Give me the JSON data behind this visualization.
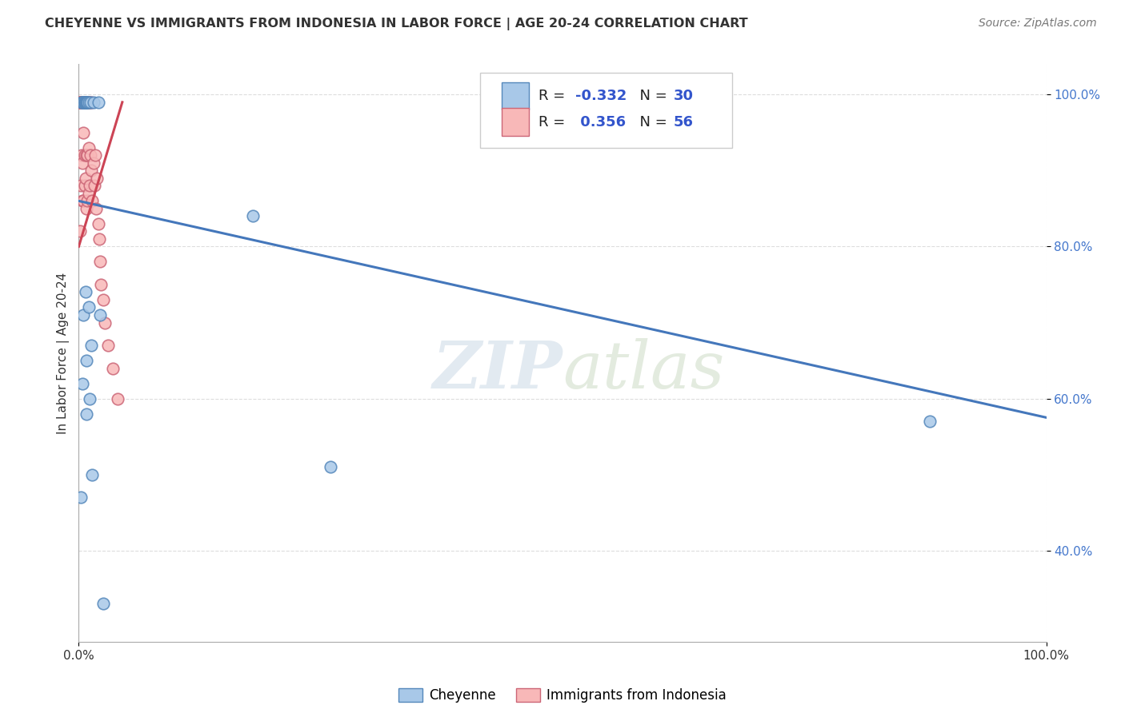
{
  "title": "CHEYENNE VS IMMIGRANTS FROM INDONESIA IN LABOR FORCE | AGE 20-24 CORRELATION CHART",
  "source": "Source: ZipAtlas.com",
  "ylabel": "In Labor Force | Age 20-24",
  "watermark": "ZIPatlas",
  "legend_blue_r": "-0.332",
  "legend_blue_n": "30",
  "legend_pink_r": "0.356",
  "legend_pink_n": "56",
  "xlim": [
    0,
    1.0
  ],
  "ylim": [
    0.28,
    1.04
  ],
  "yticks": [
    0.4,
    0.6,
    0.8,
    1.0
  ],
  "ytick_labels": [
    "40.0%",
    "60.0%",
    "80.0%",
    "100.0%"
  ],
  "blue_scatter_color": "#a8c8e8",
  "blue_edge_color": "#5588bb",
  "pink_scatter_color": "#f8b8b8",
  "pink_edge_color": "#cc6677",
  "blue_line_color": "#4477bb",
  "pink_line_color": "#cc4455",
  "cheyenne_x": [
    0.002,
    0.003,
    0.003,
    0.004,
    0.004,
    0.005,
    0.005,
    0.006,
    0.006,
    0.007,
    0.007,
    0.007,
    0.008,
    0.008,
    0.008,
    0.009,
    0.009,
    0.01,
    0.01,
    0.011,
    0.012,
    0.013,
    0.014,
    0.015,
    0.02,
    0.022,
    0.025,
    0.18,
    0.26,
    0.88
  ],
  "cheyenne_y": [
    0.47,
    0.99,
    0.99,
    0.62,
    0.99,
    0.71,
    0.99,
    0.99,
    0.99,
    0.99,
    0.74,
    0.99,
    0.99,
    0.58,
    0.65,
    0.99,
    0.99,
    0.99,
    0.72,
    0.6,
    0.99,
    0.67,
    0.5,
    0.99,
    0.99,
    0.71,
    0.33,
    0.84,
    0.51,
    0.57
  ],
  "indonesia_x": [
    0.001,
    0.001,
    0.001,
    0.002,
    0.002,
    0.002,
    0.002,
    0.003,
    0.003,
    0.003,
    0.003,
    0.003,
    0.004,
    0.004,
    0.004,
    0.004,
    0.005,
    0.005,
    0.005,
    0.005,
    0.006,
    0.006,
    0.006,
    0.006,
    0.007,
    0.007,
    0.007,
    0.008,
    0.008,
    0.008,
    0.009,
    0.009,
    0.009,
    0.01,
    0.01,
    0.01,
    0.011,
    0.011,
    0.012,
    0.013,
    0.013,
    0.014,
    0.015,
    0.016,
    0.017,
    0.018,
    0.019,
    0.02,
    0.021,
    0.022,
    0.023,
    0.025,
    0.027,
    0.03,
    0.035,
    0.04
  ],
  "indonesia_y": [
    0.99,
    0.99,
    0.82,
    0.99,
    0.99,
    0.99,
    0.88,
    0.99,
    0.99,
    0.99,
    0.92,
    0.99,
    0.99,
    0.99,
    0.91,
    0.86,
    0.99,
    0.99,
    0.95,
    0.86,
    0.99,
    0.99,
    0.92,
    0.88,
    0.99,
    0.99,
    0.89,
    0.99,
    0.92,
    0.85,
    0.99,
    0.92,
    0.86,
    0.99,
    0.93,
    0.87,
    0.99,
    0.88,
    0.92,
    0.99,
    0.9,
    0.86,
    0.91,
    0.88,
    0.92,
    0.85,
    0.89,
    0.83,
    0.81,
    0.78,
    0.75,
    0.73,
    0.7,
    0.67,
    0.64,
    0.6
  ],
  "blue_trend_x": [
    0.0,
    1.0
  ],
  "blue_trend_y": [
    0.86,
    0.575
  ],
  "pink_trend_x": [
    0.0,
    0.045
  ],
  "pink_trend_y": [
    0.8,
    0.99
  ],
  "background_color": "#ffffff",
  "grid_color": "#dddddd",
  "title_fontsize": 11.5,
  "tick_fontsize": 11,
  "legend_fontsize": 13,
  "source_fontsize": 10
}
